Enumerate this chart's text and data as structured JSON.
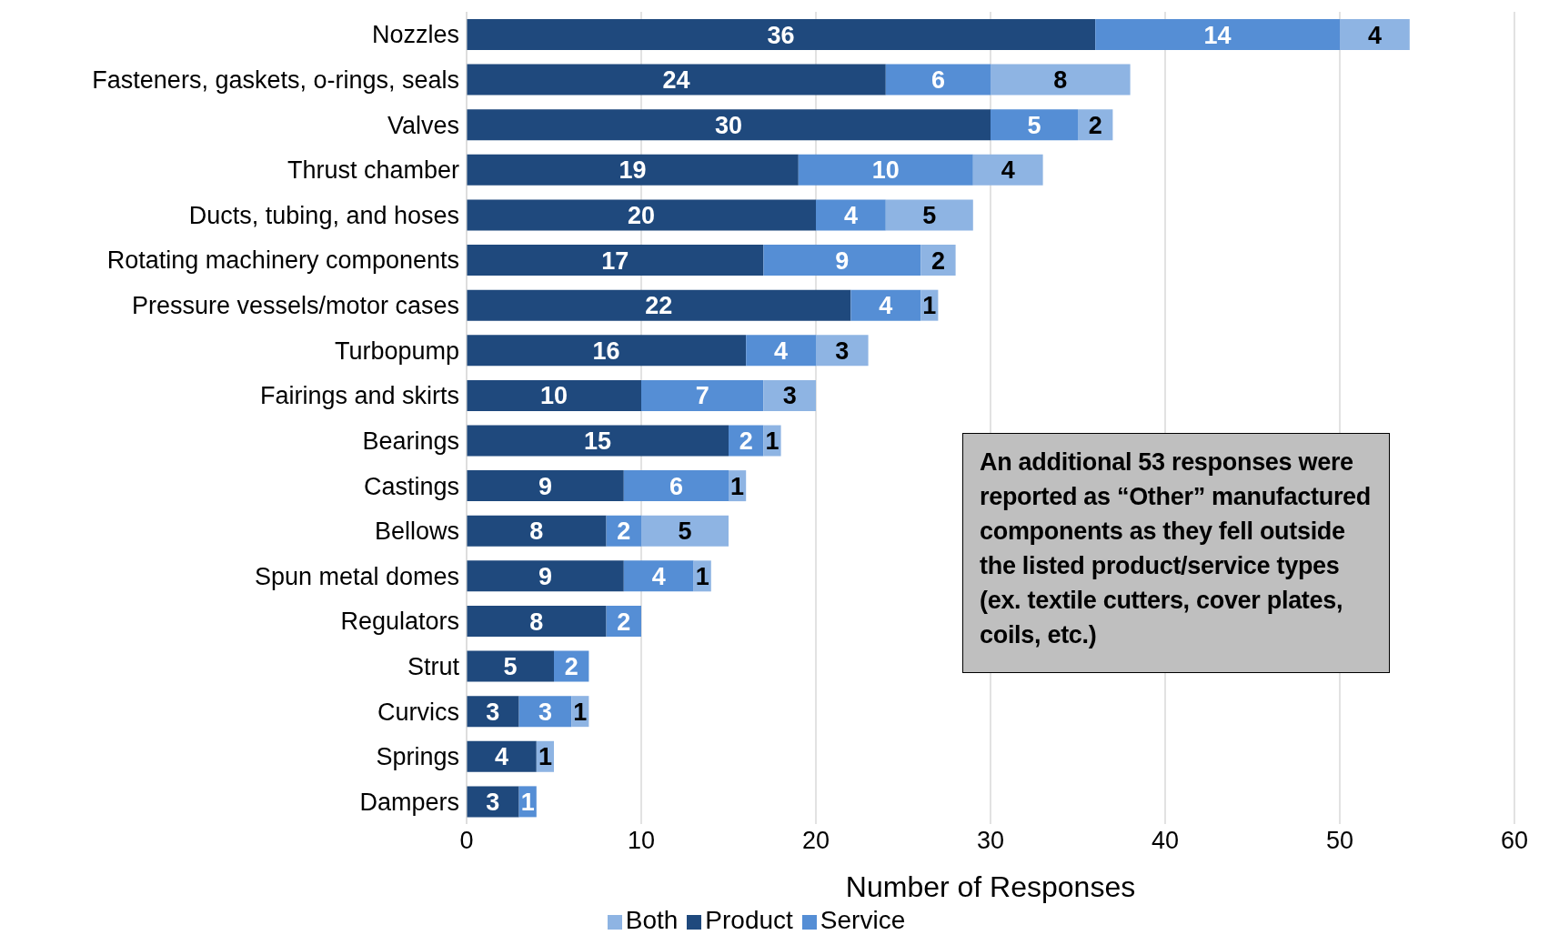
{
  "chart_data": {
    "type": "bar",
    "orientation": "horizontal",
    "stacked": true,
    "categories": [
      "Nozzles",
      "Fasteners, gaskets, o-rings, seals",
      "Valves",
      "Thrust chamber",
      "Ducts, tubing, and hoses",
      "Rotating machinery components",
      "Pressure vessels/motor cases",
      "Turbopump",
      "Fairings and skirts",
      "Bearings",
      "Castings",
      "Bellows",
      "Spun metal domes",
      "Regulators",
      "Strut",
      "Curvics",
      "Springs",
      "Dampers"
    ],
    "series": [
      {
        "name": "Product",
        "color": "#1f497d",
        "values": [
          36,
          24,
          30,
          19,
          20,
          17,
          22,
          16,
          10,
          15,
          9,
          8,
          9,
          8,
          5,
          3,
          4,
          3
        ]
      },
      {
        "name": "Service",
        "color": "#558ed5",
        "values": [
          14,
          6,
          5,
          10,
          4,
          9,
          4,
          4,
          7,
          2,
          6,
          2,
          4,
          2,
          2,
          3,
          null,
          1
        ]
      },
      {
        "name": "Both",
        "color": "#8eb4e3",
        "values": [
          4,
          8,
          2,
          4,
          5,
          2,
          1,
          3,
          3,
          1,
          1,
          5,
          1,
          null,
          null,
          1,
          1,
          null
        ]
      }
    ],
    "xlabel": "Number of Responses",
    "xlim": [
      0,
      60
    ],
    "xticks": [
      0,
      10,
      20,
      30,
      40,
      50,
      60
    ],
    "grid": "x",
    "legend": "bottom",
    "data_labels": true,
    "annotations": [
      "An additional 53 responses were reported as “Other” manufactured components as they fell outside the listed product/service types (ex. textile cutters, cover plates, coils, etc.)"
    ]
  }
}
